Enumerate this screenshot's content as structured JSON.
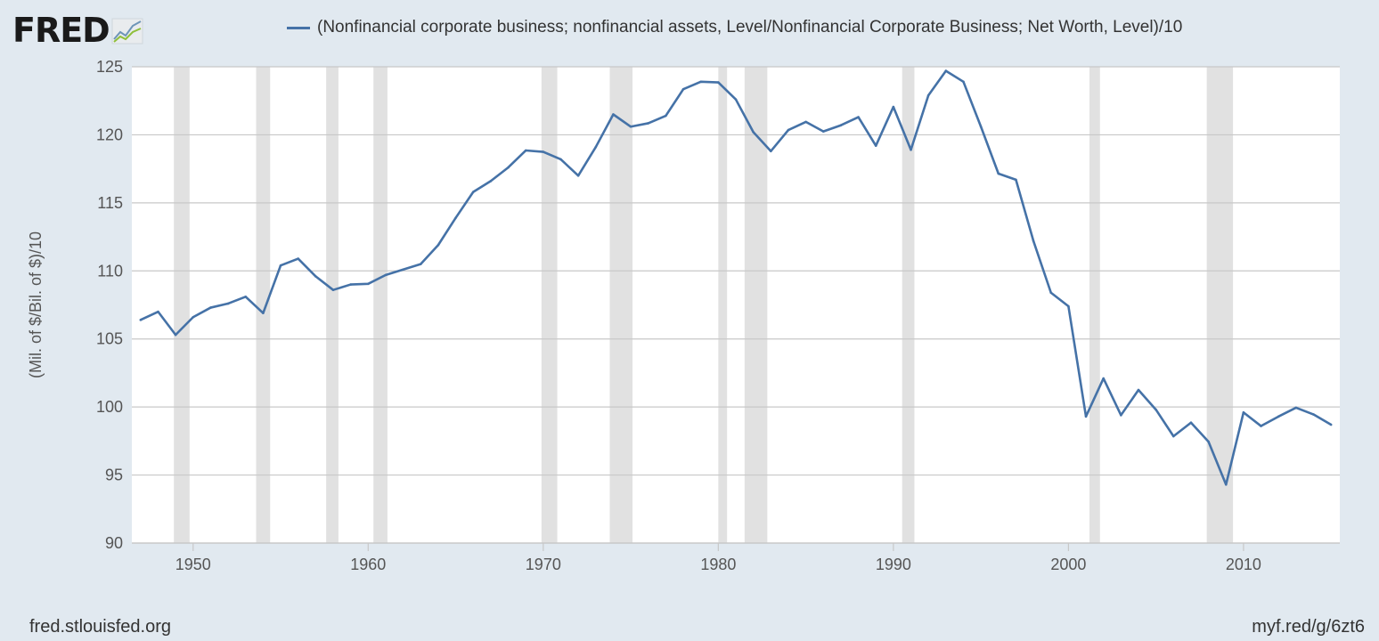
{
  "brand": {
    "name": "FRED"
  },
  "footer": {
    "source": "fred.stlouisfed.org",
    "short_link": "myf.red/g/6zt6"
  },
  "colors": {
    "series": "#4572a7",
    "recession": "#e1e1e1",
    "grid": "#c8c8c8",
    "background": "#e1e9f0",
    "plot": "#ffffff"
  },
  "chart_data": {
    "type": "line",
    "title": "",
    "xlabel": "",
    "ylabel": "(Mil. of $/Bil. of $)/10",
    "xlim": [
      1946.5,
      2015.5
    ],
    "ylim": [
      90,
      125
    ],
    "yticks": [
      90,
      95,
      100,
      105,
      110,
      115,
      120,
      125
    ],
    "xticks": [
      1950,
      1960,
      1970,
      1980,
      1990,
      2000,
      2010
    ],
    "grid": true,
    "legend_position": "top",
    "recessions": [
      [
        1948.9,
        1949.8
      ],
      [
        1953.6,
        1954.4
      ],
      [
        1957.6,
        1958.3
      ],
      [
        1960.3,
        1961.1
      ],
      [
        1969.9,
        1970.8
      ],
      [
        1973.8,
        1975.1
      ],
      [
        1980.0,
        1980.5
      ],
      [
        1981.5,
        1982.8
      ],
      [
        1990.5,
        1991.2
      ],
      [
        2001.2,
        2001.8
      ],
      [
        2007.9,
        2009.4
      ]
    ],
    "series": [
      {
        "name": "(Nonfinancial corporate business; nonfinancial assets, Level/Nonfinancial Corporate Business; Net Worth, Level)/10",
        "x": [
          1947,
          1948,
          1949,
          1950,
          1951,
          1952,
          1953,
          1954,
          1955,
          1956,
          1957,
          1958,
          1959,
          1960,
          1961,
          1962,
          1963,
          1964,
          1965,
          1966,
          1967,
          1968,
          1969,
          1970,
          1971,
          1972,
          1973,
          1974,
          1975,
          1976,
          1977,
          1978,
          1979,
          1980,
          1981,
          1982,
          1983,
          1984,
          1985,
          1986,
          1987,
          1988,
          1989,
          1990,
          1991,
          1992,
          1993,
          1994,
          1995,
          1996,
          1997,
          1998,
          1999,
          2000,
          2001,
          2002,
          2003,
          2004,
          2005,
          2006,
          2007,
          2008,
          2009,
          2010,
          2011,
          2012,
          2013,
          2014,
          2015
        ],
        "values": [
          106.4,
          107.0,
          105.3,
          106.6,
          107.3,
          107.6,
          108.1,
          106.9,
          110.4,
          110.9,
          109.6,
          108.6,
          109.0,
          109.05,
          109.7,
          110.1,
          110.5,
          111.9,
          113.9,
          115.8,
          116.6,
          117.6,
          118.85,
          118.75,
          118.2,
          117.0,
          119.1,
          121.5,
          120.6,
          120.85,
          121.4,
          123.35,
          123.9,
          123.85,
          122.6,
          120.2,
          118.8,
          120.35,
          120.95,
          120.25,
          120.7,
          121.3,
          119.2,
          122.05,
          118.9,
          122.9,
          124.7,
          123.9,
          120.6,
          117.15,
          116.7,
          112.2,
          108.4,
          107.4,
          99.3,
          102.1,
          99.4,
          101.25,
          99.8,
          97.85,
          98.85,
          97.45,
          94.3,
          99.6,
          98.6,
          99.3,
          99.95,
          99.45,
          98.7
        ]
      }
    ]
  }
}
